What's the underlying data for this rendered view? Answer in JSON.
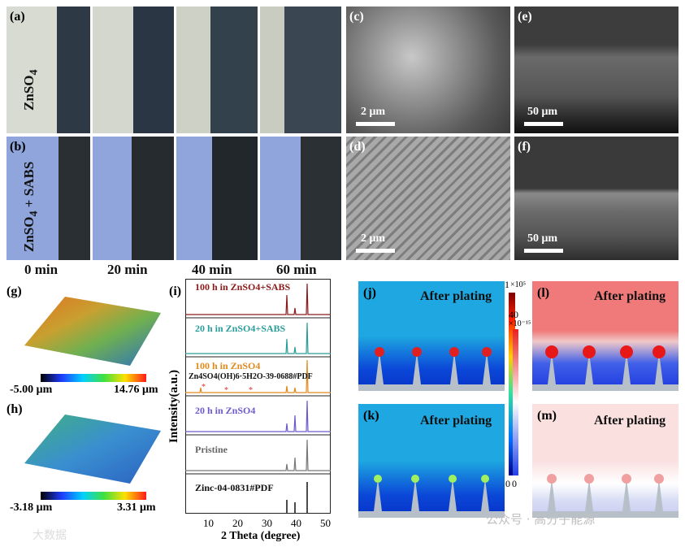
{
  "panels": {
    "a": "(a)",
    "b": "(b)",
    "c": "(c)",
    "d": "(d)",
    "e": "(e)",
    "f": "(f)",
    "g": "(g)",
    "h": "(h)",
    "i": "(i)",
    "j": "(j)",
    "k": "(k)",
    "l": "(l)",
    "m": "(m)"
  },
  "row_labels": {
    "a": "ZnSO4",
    "b": "ZnSO4 + SABS"
  },
  "time_labels": [
    "0 min",
    "20 min",
    "40 min",
    "60 min"
  ],
  "sem_scales": {
    "c": "2 μm",
    "d": "2 μm",
    "e": "50 μm",
    "f": "50 μm"
  },
  "profilometry": {
    "g": {
      "min": "-5.00 μm",
      "max": "14.76 μm"
    },
    "h": {
      "min": "-3.18 μm",
      "max": "3.31 μm"
    }
  },
  "xrd": {
    "ylabel": "Intensity(a.u.)",
    "xlabel": "2 Theta (degree)",
    "xticks": [
      "10",
      "20",
      "30",
      "40",
      "50"
    ],
    "traces": [
      {
        "label": "100 h in ZnSO4+SABS",
        "color": "#8b1a1a"
      },
      {
        "label": "20 h in ZnSO4+SABS",
        "color": "#2a9d9a"
      },
      {
        "label": "100 h in ZnSO4",
        "color": "#e08a1e"
      },
      {
        "label": "20 h in ZnSO4",
        "color": "#6a5acd"
      },
      {
        "label": "Pristine",
        "color": "#777777"
      },
      {
        "label": "Zinc-04-0831#PDF",
        "color": "#111111"
      }
    ],
    "pdf_note": "Zn4SO4(OH)6·5H2O-39-0688#PDF"
  },
  "colorbars": {
    "jk": {
      "top": "1",
      "unit": "×10⁵",
      "bottom": "0"
    },
    "lm": {
      "top": "40",
      "unit": "×10⁻¹⁵",
      "bottom": "0"
    }
  },
  "sim_titles": {
    "j": "After plating",
    "k": "After plating",
    "l": "After plating",
    "m": "After plating"
  },
  "watermark": {
    "right": "公众号 · 高分子能源",
    "left": "大数据"
  }
}
